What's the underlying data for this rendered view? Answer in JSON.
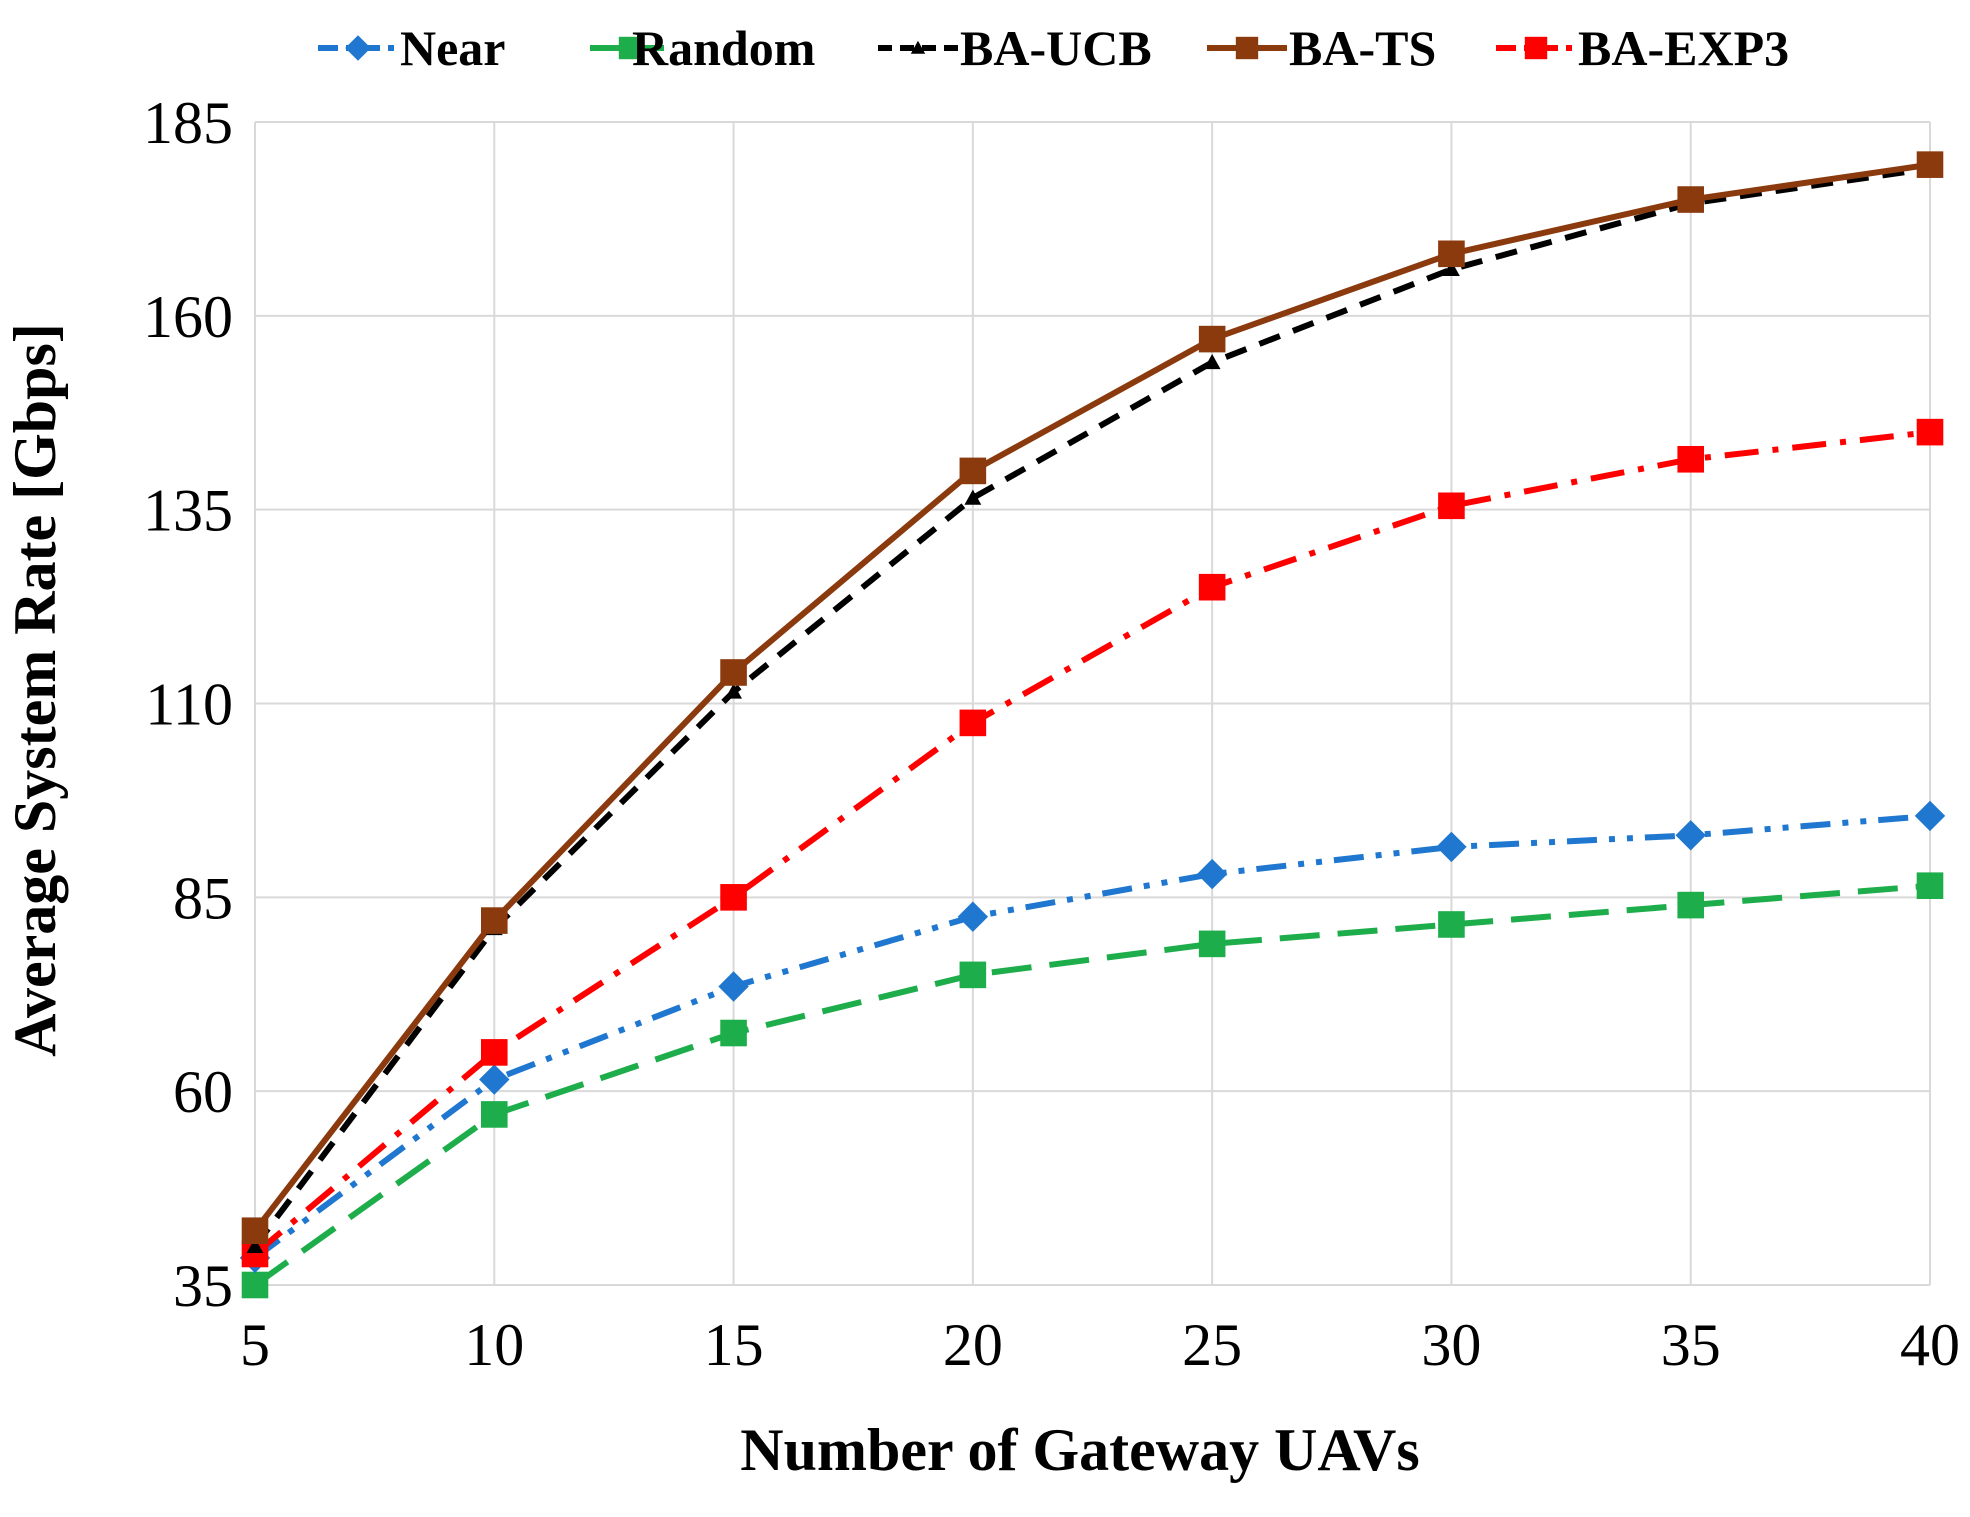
{
  "chart_data": {
    "type": "line",
    "title": "",
    "xlabel": "Number of Gateway UAVs",
    "ylabel": "Average System Rate [Gbps]",
    "x": [
      5,
      10,
      15,
      20,
      25,
      30,
      35,
      40
    ],
    "xticks": [
      "5",
      "10",
      "15",
      "20",
      "25",
      "30",
      "35",
      "40"
    ],
    "yticks": [
      "35",
      "60",
      "85",
      "110",
      "135",
      "160",
      "185"
    ],
    "xlim": [
      5,
      40
    ],
    "ylim": [
      35,
      185
    ],
    "grid": true,
    "legend_position": "top",
    "series": [
      {
        "name": "Near",
        "color": "#1F77D0",
        "marker": "diamond",
        "dash": "dash-dot-dot",
        "values": [
          38.5,
          61.5,
          73.5,
          82.5,
          88,
          91.5,
          93,
          95.5
        ]
      },
      {
        "name": "Random",
        "color": "#1EAD4B",
        "marker": "square",
        "dash": "long-dash",
        "values": [
          35,
          57,
          67.5,
          75,
          79,
          81.5,
          84,
          86.5
        ]
      },
      {
        "name": "BA-UCB",
        "color": "#000000",
        "marker": "triangle",
        "dash": "dash",
        "values": [
          40,
          81,
          111.5,
          136.5,
          154,
          166,
          174.5,
          179
        ]
      },
      {
        "name": "BA-TS",
        "color": "#8B3A0E",
        "marker": "square",
        "dash": "solid",
        "values": [
          42,
          82,
          114,
          140,
          157,
          168,
          175,
          179.5
        ]
      },
      {
        "name": "BA-EXP3",
        "color": "#FF0000",
        "marker": "square",
        "dash": "dash-dot",
        "values": [
          39,
          65,
          85,
          107.5,
          125,
          135.5,
          141.5,
          145
        ]
      }
    ]
  }
}
